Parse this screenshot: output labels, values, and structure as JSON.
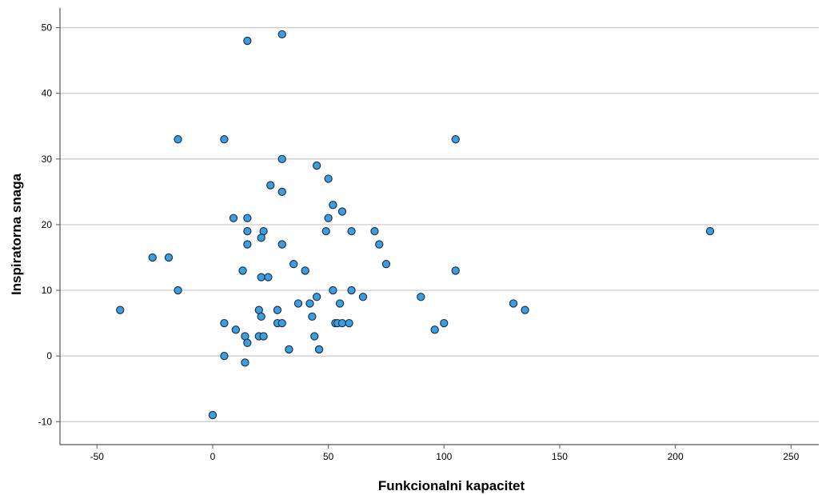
{
  "chart_data": {
    "type": "scatter",
    "title": "",
    "xlabel": "Funkcionalni kapacitet",
    "ylabel": "Inspiratorna snaga",
    "xlim": [
      -66,
      262
    ],
    "ylim": [
      -13.5,
      53
    ],
    "xticks": [
      -50,
      0,
      50,
      100,
      150,
      200,
      250
    ],
    "yticks": [
      -10,
      0,
      10,
      20,
      30,
      40,
      50
    ],
    "xtick_labels": [
      "-50",
      "0",
      "50",
      "100",
      "150",
      "200",
      "250"
    ],
    "ytick_labels": [
      "-10",
      "0",
      "10",
      "20",
      "30",
      "40",
      "50"
    ],
    "grid": "horizontal",
    "colors": {
      "point_fill": "#3a9ee3",
      "point_stroke": "#1a2a3a",
      "grid": "#c8c8c8",
      "axis": "#555555"
    },
    "points": [
      {
        "x": 15,
        "y": 48
      },
      {
        "x": 30,
        "y": 49
      },
      {
        "x": -15,
        "y": 33
      },
      {
        "x": 5,
        "y": 33
      },
      {
        "x": 105,
        "y": 33
      },
      {
        "x": 30,
        "y": 30
      },
      {
        "x": 45,
        "y": 29
      },
      {
        "x": 50,
        "y": 27
      },
      {
        "x": 25,
        "y": 26
      },
      {
        "x": 30,
        "y": 25
      },
      {
        "x": 52,
        "y": 23
      },
      {
        "x": 56,
        "y": 22
      },
      {
        "x": 9,
        "y": 21
      },
      {
        "x": 15,
        "y": 21
      },
      {
        "x": 50,
        "y": 21
      },
      {
        "x": 15,
        "y": 19
      },
      {
        "x": 22,
        "y": 19
      },
      {
        "x": 49,
        "y": 19
      },
      {
        "x": 60,
        "y": 19
      },
      {
        "x": 70,
        "y": 19
      },
      {
        "x": 215,
        "y": 19
      },
      {
        "x": 21,
        "y": 18
      },
      {
        "x": 15,
        "y": 17
      },
      {
        "x": 30,
        "y": 17
      },
      {
        "x": 72,
        "y": 17
      },
      {
        "x": -26,
        "y": 15
      },
      {
        "x": -19,
        "y": 15
      },
      {
        "x": 35,
        "y": 14
      },
      {
        "x": 75,
        "y": 14
      },
      {
        "x": 13,
        "y": 13
      },
      {
        "x": 40,
        "y": 13
      },
      {
        "x": 105,
        "y": 13
      },
      {
        "x": 21,
        "y": 12
      },
      {
        "x": 24,
        "y": 12
      },
      {
        "x": -15,
        "y": 10
      },
      {
        "x": 52,
        "y": 10
      },
      {
        "x": 60,
        "y": 10
      },
      {
        "x": 45,
        "y": 9
      },
      {
        "x": 65,
        "y": 9
      },
      {
        "x": 90,
        "y": 9
      },
      {
        "x": 37,
        "y": 8
      },
      {
        "x": 42,
        "y": 8
      },
      {
        "x": 55,
        "y": 8
      },
      {
        "x": 130,
        "y": 8
      },
      {
        "x": -40,
        "y": 7
      },
      {
        "x": 20,
        "y": 7
      },
      {
        "x": 28,
        "y": 7
      },
      {
        "x": 135,
        "y": 7
      },
      {
        "x": 21,
        "y": 6
      },
      {
        "x": 43,
        "y": 6
      },
      {
        "x": 5,
        "y": 5
      },
      {
        "x": 28,
        "y": 5
      },
      {
        "x": 30,
        "y": 5
      },
      {
        "x": 53,
        "y": 5
      },
      {
        "x": 54,
        "y": 5
      },
      {
        "x": 56,
        "y": 5
      },
      {
        "x": 59,
        "y": 5
      },
      {
        "x": 100,
        "y": 5
      },
      {
        "x": 10,
        "y": 4
      },
      {
        "x": 96,
        "y": 4
      },
      {
        "x": 14,
        "y": 3
      },
      {
        "x": 20,
        "y": 3
      },
      {
        "x": 22,
        "y": 3
      },
      {
        "x": 44,
        "y": 3
      },
      {
        "x": 15,
        "y": 2
      },
      {
        "x": 33,
        "y": 1
      },
      {
        "x": 46,
        "y": 1
      },
      {
        "x": 5,
        "y": 0
      },
      {
        "x": 14,
        "y": -1
      },
      {
        "x": 0,
        "y": -9
      }
    ]
  }
}
